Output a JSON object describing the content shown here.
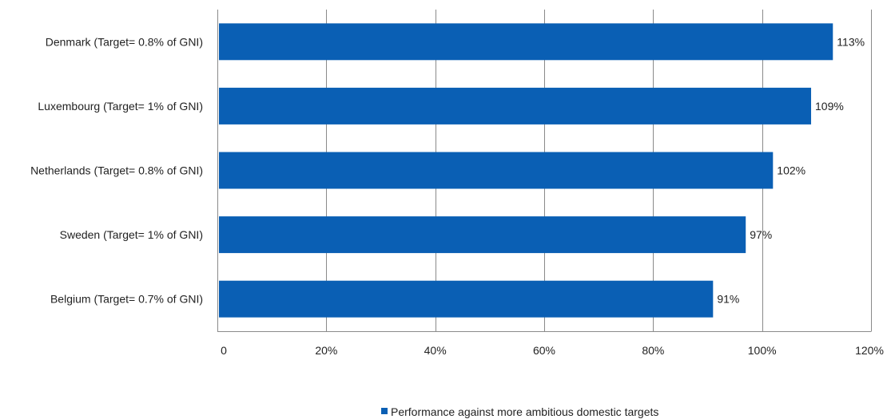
{
  "chart_data": {
    "type": "bar",
    "orientation": "horizontal",
    "categories": [
      "Denmark (Target= 0.8% of GNI)",
      "Luxembourg (Target= 1% of GNI)",
      "Netherlands (Target= 0.8% of GNI)",
      "Sweden (Target= 1% of GNI)",
      "Belgium (Target= 0.7% of GNI)"
    ],
    "series": [
      {
        "name": "Performance against more ambitious domestic targets",
        "values": [
          113,
          109,
          102,
          97,
          91
        ],
        "data_labels": [
          "113%",
          "109%",
          "102%",
          "97%",
          "91%"
        ],
        "color": "#0a5fb4"
      }
    ],
    "xlim": [
      0,
      120
    ],
    "x_ticks": [
      0,
      20,
      40,
      60,
      80,
      100,
      120
    ],
    "x_tick_labels": [
      "0",
      "20%",
      "40%",
      "60%",
      "80%",
      "100%",
      "120%"
    ],
    "grid": "vertical",
    "legend_position": "bottom-center",
    "title": "",
    "xlabel": "",
    "ylabel": ""
  }
}
